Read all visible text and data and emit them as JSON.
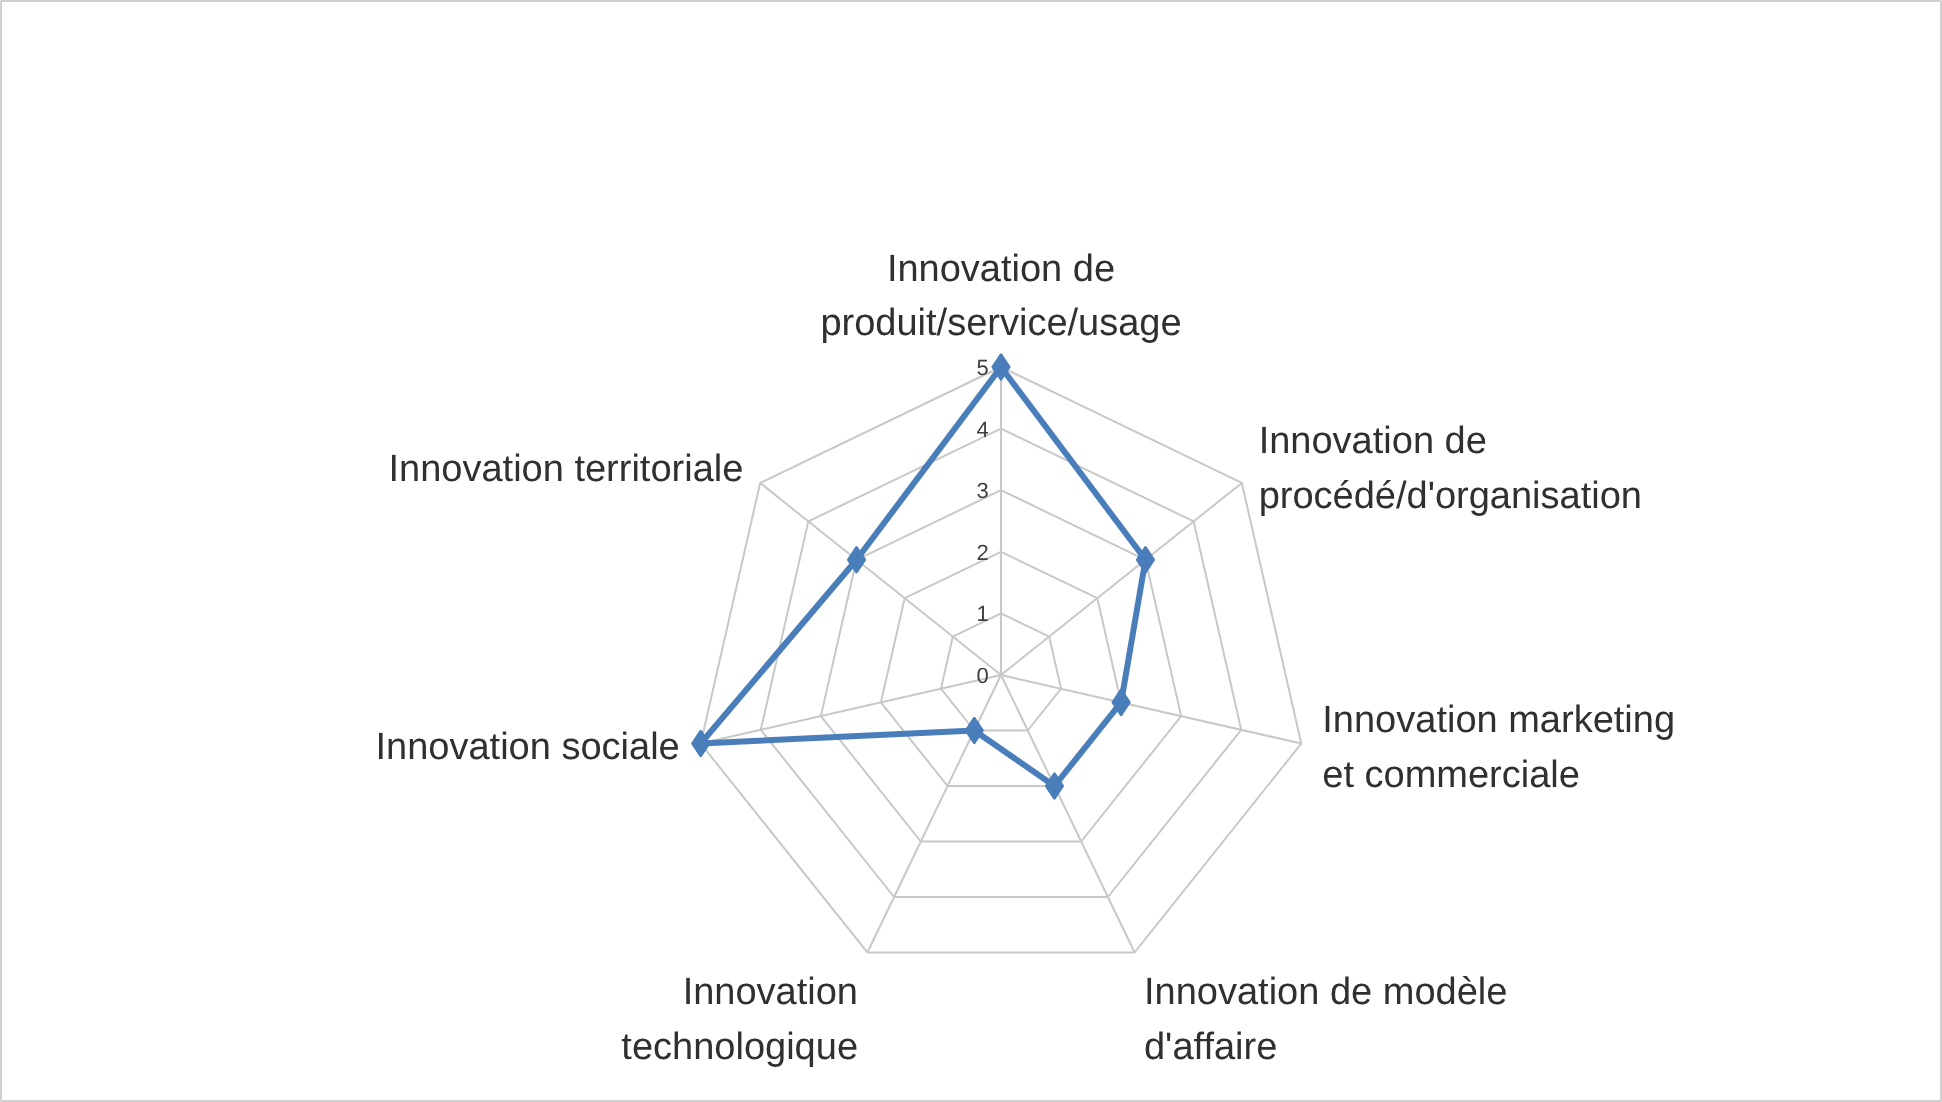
{
  "chart_data": {
    "type": "radar",
    "categories": [
      "Innovation de\nproduit/service/usage",
      "Innovation de\nprocédé/d'organisation",
      "Innovation marketing\net commerciale",
      "Innovation de modèle\nd'affaire",
      "Innovation\ntechnologique",
      "Innovation sociale",
      "Innovation territoriale"
    ],
    "series": [
      {
        "color": "#4a7ebb",
        "values": [
          5,
          3,
          2,
          2,
          1,
          5,
          3
        ]
      }
    ],
    "ylim": [
      0,
      5
    ],
    "yticks": [
      0,
      1,
      2,
      3,
      4,
      5
    ],
    "grid": true,
    "marker": "diamond"
  }
}
